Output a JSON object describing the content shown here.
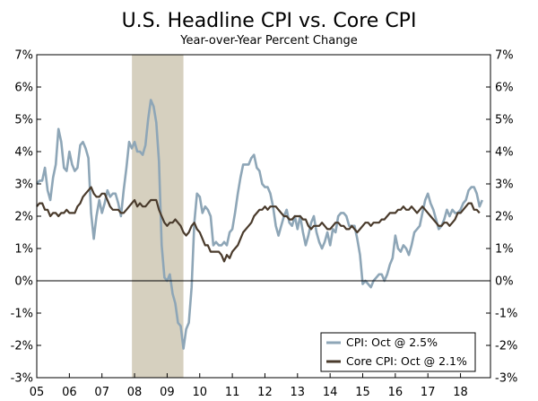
{
  "chart_data": {
    "type": "line",
    "title": "U.S. Headline CPI vs. Core CPI",
    "subtitle": "Year-over-Year Percent Change",
    "xlabel": "",
    "ylabel": "",
    "xlim": [
      2005.0,
      2018.92
    ],
    "ylim": [
      -3,
      7
    ],
    "x_ticks": [
      {
        "label": "05",
        "value": 2005
      },
      {
        "label": "06",
        "value": 2006
      },
      {
        "label": "07",
        "value": 2007
      },
      {
        "label": "08",
        "value": 2008
      },
      {
        "label": "09",
        "value": 2009
      },
      {
        "label": "10",
        "value": 2010
      },
      {
        "label": "11",
        "value": 2011
      },
      {
        "label": "12",
        "value": 2012
      },
      {
        "label": "13",
        "value": 2013
      },
      {
        "label": "14",
        "value": 2014
      },
      {
        "label": "15",
        "value": 2015
      },
      {
        "label": "16",
        "value": 2016
      },
      {
        "label": "17",
        "value": 2017
      },
      {
        "label": "18",
        "value": 2018
      }
    ],
    "y_ticks": [
      {
        "label": "7%",
        "value": 7
      },
      {
        "label": "6%",
        "value": 6
      },
      {
        "label": "5%",
        "value": 5
      },
      {
        "label": "4%",
        "value": 4
      },
      {
        "label": "3%",
        "value": 3
      },
      {
        "label": "2%",
        "value": 2
      },
      {
        "label": "1%",
        "value": 1
      },
      {
        "label": "0%",
        "value": 0
      },
      {
        "label": "-1%",
        "value": -1
      },
      {
        "label": "-2%",
        "value": -2
      },
      {
        "label": "-3%",
        "value": -3
      }
    ],
    "recession": {
      "start": 2007.92,
      "end": 2009.5,
      "color": "#d6d0bf"
    },
    "grid": false,
    "legend_position": "bottom-right",
    "series": [
      {
        "name": "CPI: Oct @ 2.5%",
        "color": "#8ea6b7",
        "start": 2005.0,
        "step": 0.0833333,
        "values": [
          3.0,
          3.1,
          3.1,
          3.5,
          2.8,
          2.5,
          3.2,
          3.6,
          4.7,
          4.3,
          3.5,
          3.4,
          4.0,
          3.6,
          3.4,
          3.5,
          4.2,
          4.3,
          4.1,
          3.8,
          2.1,
          1.3,
          2.0,
          2.5,
          2.1,
          2.4,
          2.8,
          2.6,
          2.7,
          2.7,
          2.4,
          2.0,
          2.8,
          3.5,
          4.3,
          4.1,
          4.3,
          4.0,
          4.0,
          3.9,
          4.2,
          5.0,
          5.6,
          5.4,
          4.9,
          3.7,
          1.1,
          0.1,
          0.0,
          0.2,
          -0.4,
          -0.7,
          -1.3,
          -1.4,
          -2.1,
          -1.5,
          -1.3,
          -0.2,
          1.8,
          2.7,
          2.6,
          2.1,
          2.3,
          2.2,
          2.0,
          1.1,
          1.2,
          1.1,
          1.1,
          1.2,
          1.1,
          1.5,
          1.6,
          2.1,
          2.7,
          3.2,
          3.6,
          3.6,
          3.6,
          3.8,
          3.9,
          3.5,
          3.4,
          3.0,
          2.9,
          2.9,
          2.7,
          2.3,
          1.7,
          1.4,
          1.7,
          2.0,
          2.2,
          1.8,
          1.7,
          2.0,
          1.6,
          2.0,
          1.5,
          1.1,
          1.4,
          1.8,
          2.0,
          1.5,
          1.2,
          1.0,
          1.2,
          1.5,
          1.1,
          1.6,
          1.5,
          2.0,
          2.1,
          2.1,
          2.0,
          1.7,
          1.7,
          1.7,
          1.3,
          0.8,
          -0.1,
          0.0,
          -0.1,
          -0.2,
          0.0,
          0.1,
          0.2,
          0.2,
          0.0,
          0.2,
          0.5,
          0.7,
          1.4,
          1.0,
          0.9,
          1.1,
          1.0,
          0.8,
          1.1,
          1.5,
          1.6,
          1.7,
          2.1,
          2.5,
          2.7,
          2.4,
          2.2,
          1.9,
          1.6,
          1.7,
          1.9,
          2.2,
          2.0,
          2.2,
          2.1,
          2.1,
          2.2,
          2.4,
          2.5,
          2.8,
          2.9,
          2.9,
          2.7,
          2.3,
          2.5
        ]
      },
      {
        "name": "Core CPI: Oct @ 2.1%",
        "color": "#4a3b2c",
        "start": 2005.0,
        "step": 0.0833333,
        "values": [
          2.3,
          2.4,
          2.4,
          2.2,
          2.2,
          2.0,
          2.1,
          2.1,
          2.0,
          2.1,
          2.1,
          2.2,
          2.1,
          2.1,
          2.1,
          2.3,
          2.4,
          2.6,
          2.7,
          2.8,
          2.9,
          2.7,
          2.6,
          2.6,
          2.7,
          2.7,
          2.5,
          2.3,
          2.2,
          2.2,
          2.2,
          2.1,
          2.1,
          2.2,
          2.3,
          2.4,
          2.5,
          2.3,
          2.4,
          2.3,
          2.3,
          2.4,
          2.5,
          2.5,
          2.5,
          2.2,
          2.0,
          1.8,
          1.7,
          1.8,
          1.8,
          1.9,
          1.8,
          1.7,
          1.5,
          1.4,
          1.5,
          1.7,
          1.8,
          1.6,
          1.5,
          1.3,
          1.1,
          1.1,
          0.9,
          0.9,
          0.9,
          0.9,
          0.8,
          0.6,
          0.8,
          0.7,
          0.9,
          1.0,
          1.1,
          1.3,
          1.5,
          1.6,
          1.7,
          1.8,
          2.0,
          2.1,
          2.2,
          2.2,
          2.3,
          2.2,
          2.3,
          2.3,
          2.3,
          2.2,
          2.1,
          2.0,
          2.0,
          1.9,
          1.9,
          2.0,
          2.0,
          2.0,
          1.9,
          1.9,
          1.7,
          1.6,
          1.7,
          1.7,
          1.7,
          1.8,
          1.7,
          1.6,
          1.6,
          1.7,
          1.8,
          1.8,
          1.7,
          1.7,
          1.6,
          1.6,
          1.7,
          1.6,
          1.5,
          1.6,
          1.7,
          1.8,
          1.8,
          1.7,
          1.8,
          1.8,
          1.8,
          1.9,
          1.9,
          2.0,
          2.1,
          2.1,
          2.1,
          2.2,
          2.2,
          2.3,
          2.2,
          2.2,
          2.3,
          2.2,
          2.1,
          2.2,
          2.3,
          2.2,
          2.1,
          2.0,
          1.9,
          1.8,
          1.7,
          1.7,
          1.8,
          1.8,
          1.7,
          1.8,
          1.9,
          2.1,
          2.1,
          2.2,
          2.3,
          2.4,
          2.4,
          2.2,
          2.2,
          2.1
        ]
      }
    ]
  }
}
